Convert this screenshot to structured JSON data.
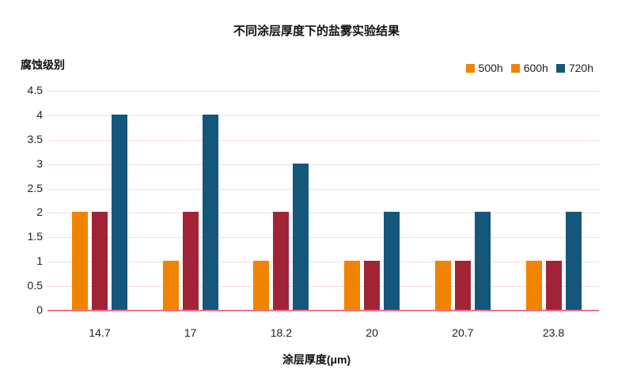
{
  "chart_data": {
    "type": "bar",
    "title": "不同涂层厚度下的盐雾实验结果",
    "xlabel": "涂层厚度(μm)",
    "ylabel": "腐蚀级别",
    "categories": [
      "14.7",
      "17",
      "18.2",
      "20",
      "20.7",
      "23.8"
    ],
    "series": [
      {
        "name": "500h",
        "color": "#f08400",
        "legend_color": "#f08400",
        "values": [
          2,
          1,
          1,
          1,
          1,
          1
        ]
      },
      {
        "name": "600h",
        "color": "#a32336",
        "legend_color": "#f08400",
        "values": [
          2,
          2,
          2,
          1,
          1,
          1
        ]
      },
      {
        "name": "720h",
        "color": "#14577b",
        "legend_color": "#14577b",
        "values": [
          4,
          4,
          3,
          2,
          2,
          2
        ]
      }
    ],
    "ylim": [
      0,
      4.5
    ],
    "yticks": [
      "0",
      "0.5",
      "1",
      "1.5",
      "2",
      "2.5",
      "3",
      "3.5",
      "4",
      "4.5"
    ],
    "grid": true,
    "legend_position": "top-right"
  }
}
